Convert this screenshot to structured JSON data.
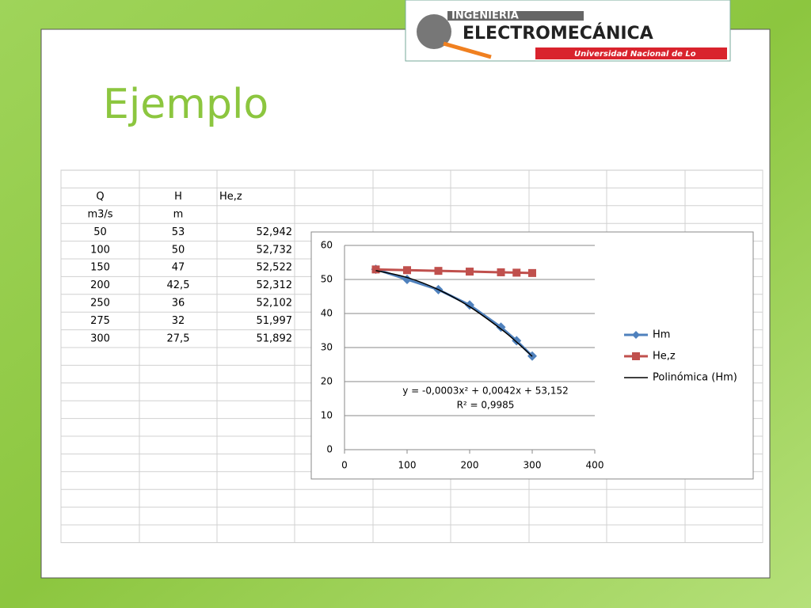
{
  "title": "Ejemplo",
  "logo": {
    "line1": "INGENIERIA",
    "line2": "ELECTROMECÁNICA",
    "line3": "Universidad Nacional de Lo"
  },
  "table": {
    "header": [
      "Q",
      "H",
      "He,z"
    ],
    "units": [
      "m3/s",
      "m"
    ],
    "rows": [
      [
        "50",
        "53",
        "52,942"
      ],
      [
        "100",
        "50",
        "52,732"
      ],
      [
        "150",
        "47",
        "52,522"
      ],
      [
        "200",
        "42,5",
        "52,312"
      ],
      [
        "250",
        "36",
        "52,102"
      ],
      [
        "275",
        "32",
        "51,997"
      ],
      [
        "300",
        "27,5",
        "51,892"
      ]
    ]
  },
  "chart_data": {
    "type": "line",
    "x": [
      50,
      100,
      150,
      200,
      250,
      275,
      300
    ],
    "series": [
      {
        "name": "Hm",
        "color": "#4f81bd",
        "marker": "diamond",
        "values": [
          53,
          50,
          47,
          42.5,
          36,
          32,
          27.5
        ]
      },
      {
        "name": "He,z",
        "color": "#c0504d",
        "marker": "square",
        "values": [
          52.942,
          52.732,
          52.522,
          52.312,
          52.102,
          51.997,
          51.892
        ]
      },
      {
        "name": "Polinómica (Hm)",
        "color": "#000000",
        "marker": "none",
        "values": [
          52.61,
          50.57,
          47.03,
          41.99,
          35.45,
          31.62,
          27.41
        ]
      }
    ],
    "annotations": [
      "y = -0,0003x² + 0,0042x + 53,152",
      "R² = 0,9985"
    ],
    "xlim": [
      0,
      400
    ],
    "xticks": [
      0,
      100,
      200,
      300,
      400
    ],
    "ylim": [
      0,
      60
    ],
    "yticks": [
      0,
      10,
      20,
      30,
      40,
      50,
      60
    ],
    "grid": true,
    "legend": "right"
  }
}
